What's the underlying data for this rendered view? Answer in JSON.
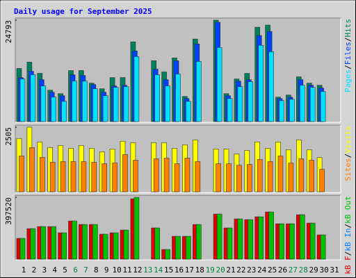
{
  "chart_data": [
    {
      "type": "bar",
      "title": "Daily usage for September 2025",
      "ylim": [
        0,
        24793
      ],
      "yticks": [
        24793
      ],
      "legend_separator": "/",
      "bars_reversed": true,
      "series": [
        {
          "name": "Pages",
          "color": "#00e0ff",
          "values": [
            10430,
            11456,
            8720,
            5984,
            4959,
            9917,
            9917,
            8036,
            6326,
            8378,
            8549,
            15901,
            0,
            11456,
            8720,
            11627,
            4959,
            14705,
            0,
            18124,
            5642,
            8549,
            9746,
            18637,
            17099,
            5129,
            5471,
            8891,
            8378,
            7352,
            0
          ]
        },
        {
          "name": "Files",
          "color": "#0040ff",
          "values": [
            10772,
            12311,
            10259,
            7181,
            6326,
            11456,
            11285,
            9062,
            7181,
            8720,
            8891,
            17270,
            0,
            12824,
            10259,
            14876,
            5642,
            18979,
            0,
            24280,
            6326,
            9917,
            10259,
            21031,
            22057,
            5642,
            5984,
            10259,
            8891,
            8207,
            0
          ]
        },
        {
          "name": "Hits",
          "color": "#00805c",
          "values": [
            12995,
            14534,
            11798,
            7694,
            6839,
            12482,
            12482,
            9404,
            8036,
            10772,
            10772,
            19492,
            0,
            14876,
            12140,
            15560,
            6155,
            20176,
            0,
            24793,
            6839,
            10430,
            11798,
            23083,
            23596,
            5984,
            6497,
            10943,
            9404,
            8891,
            0
          ]
        }
      ]
    },
    {
      "type": "bar",
      "ylim": [
        0,
        2505
      ],
      "yticks": [
        2505
      ],
      "legend_separator": "/",
      "bars_reversed": true,
      "series": [
        {
          "name": "Sites",
          "color": "#ff8000",
          "values": [
            1389,
            1715,
            1334,
            1144,
            1171,
            1171,
            1171,
            1144,
            1089,
            1116,
            1443,
            1225,
            0,
            1280,
            1307,
            1089,
            1307,
            1171,
            0,
            1089,
            1089,
            1035,
            1062,
            1253,
            1171,
            1389,
            1116,
            1280,
            1225,
            871,
            0
          ]
        },
        {
          "name": "Visits",
          "color": "#ffff00",
          "values": [
            2069,
            2505,
            1933,
            1715,
            1797,
            1688,
            1797,
            1688,
            1552,
            1661,
            1960,
            1906,
            0,
            1906,
            1906,
            1688,
            1824,
            2015,
            0,
            1661,
            1661,
            1470,
            1606,
            1933,
            1688,
            1933,
            1634,
            2015,
            1634,
            1334,
            0
          ]
        }
      ]
    },
    {
      "type": "bar",
      "ylim": [
        0,
        397520
      ],
      "yticks": [
        397520
      ],
      "legend_separator": "/",
      "bars_reversed": false,
      "categories": [
        "1",
        "2",
        "3",
        "4",
        "5",
        "6",
        "7",
        "8",
        "9",
        "10",
        "11",
        "12",
        "13",
        "14",
        "15",
        "16",
        "17",
        "18",
        "19",
        "20",
        "21",
        "22",
        "23",
        "24",
        "25",
        "26",
        "27",
        "28",
        "29",
        "30",
        "31"
      ],
      "category_colors": [
        "#000000",
        "#000000",
        "#000000",
        "#000000",
        "#000000",
        "#008040",
        "#008040",
        "#000000",
        "#000000",
        "#000000",
        "#000000",
        "#000000",
        "#008040",
        "#008040",
        "#000000",
        "#000000",
        "#000000",
        "#000000",
        "#008040",
        "#008040",
        "#000000",
        "#000000",
        "#000000",
        "#000000",
        "#000000",
        "#000000",
        "#008040",
        "#008040",
        "#000000",
        "#000000",
        "#000000"
      ],
      "series": [
        {
          "name": "kB F",
          "color": "#e00000",
          "values": [
            133996,
            196527,
            209926,
            209926,
            169727,
            245657,
            223326,
            223326,
            160794,
            169727,
            187592,
            388587,
            0,
            200993,
            62531,
            147395,
            147395,
            223326,
            0,
            290320,
            200993,
            259061,
            254594,
            272459,
            303724,
            227793,
            227793,
            285853,
            232259,
            156329,
            0
          ]
        },
        {
          "name": "kB In",
          "color": "#0080ff",
          "values": [
            0,
            0,
            0,
            0,
            0,
            0,
            0,
            0,
            0,
            0,
            0,
            0,
            0,
            0,
            0,
            0,
            0,
            0,
            0,
            0,
            0,
            0,
            0,
            0,
            0,
            0,
            0,
            0,
            0,
            0,
            0
          ]
        },
        {
          "name": "kB Out",
          "color": "#00c000",
          "values": [
            133996,
            196527,
            209926,
            209926,
            169727,
            245657,
            223326,
            223326,
            160794,
            169727,
            187592,
            397520,
            0,
            200993,
            62531,
            147395,
            147395,
            223326,
            0,
            290320,
            200993,
            259061,
            254594,
            272459,
            303724,
            227793,
            227793,
            285853,
            232259,
            156329,
            0
          ]
        }
      ]
    }
  ]
}
